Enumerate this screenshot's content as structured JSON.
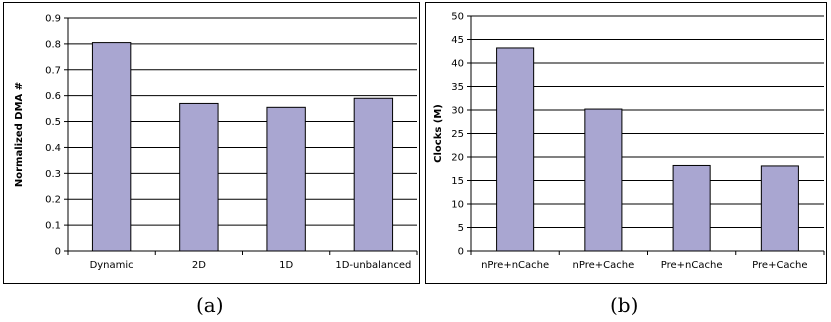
{
  "chart_data": [
    {
      "type": "bar",
      "categories": [
        "Dynamic",
        "2D",
        "1D",
        "1D-unbalanced"
      ],
      "values": [
        0.805,
        0.57,
        0.555,
        0.59
      ],
      "title": "",
      "xlabel": "",
      "ylabel": "Normalized DMA #",
      "ylim": [
        0,
        0.9
      ],
      "yticks": [
        "0",
        "0.1",
        "0.2",
        "0.3",
        "0.4",
        "0.5",
        "0.6",
        "0.7",
        "0.8",
        "0.9"
      ],
      "grid": "horizontal",
      "bar_color": "#a9a6d1",
      "caption": "(a)"
    },
    {
      "type": "bar",
      "categories": [
        "nPre+nCache",
        "nPre+Cache",
        "Pre+nCache",
        "Pre+Cache"
      ],
      "values": [
        43.2,
        30.2,
        18.2,
        18.1
      ],
      "title": "",
      "xlabel": "",
      "ylabel": "Clocks (M)",
      "ylim": [
        0,
        50
      ],
      "yticks": [
        "0",
        "5",
        "10",
        "15",
        "20",
        "25",
        "30",
        "35",
        "40",
        "45",
        "50"
      ],
      "grid": "horizontal",
      "bar_color": "#a9a6d1",
      "caption": "(b)"
    }
  ]
}
